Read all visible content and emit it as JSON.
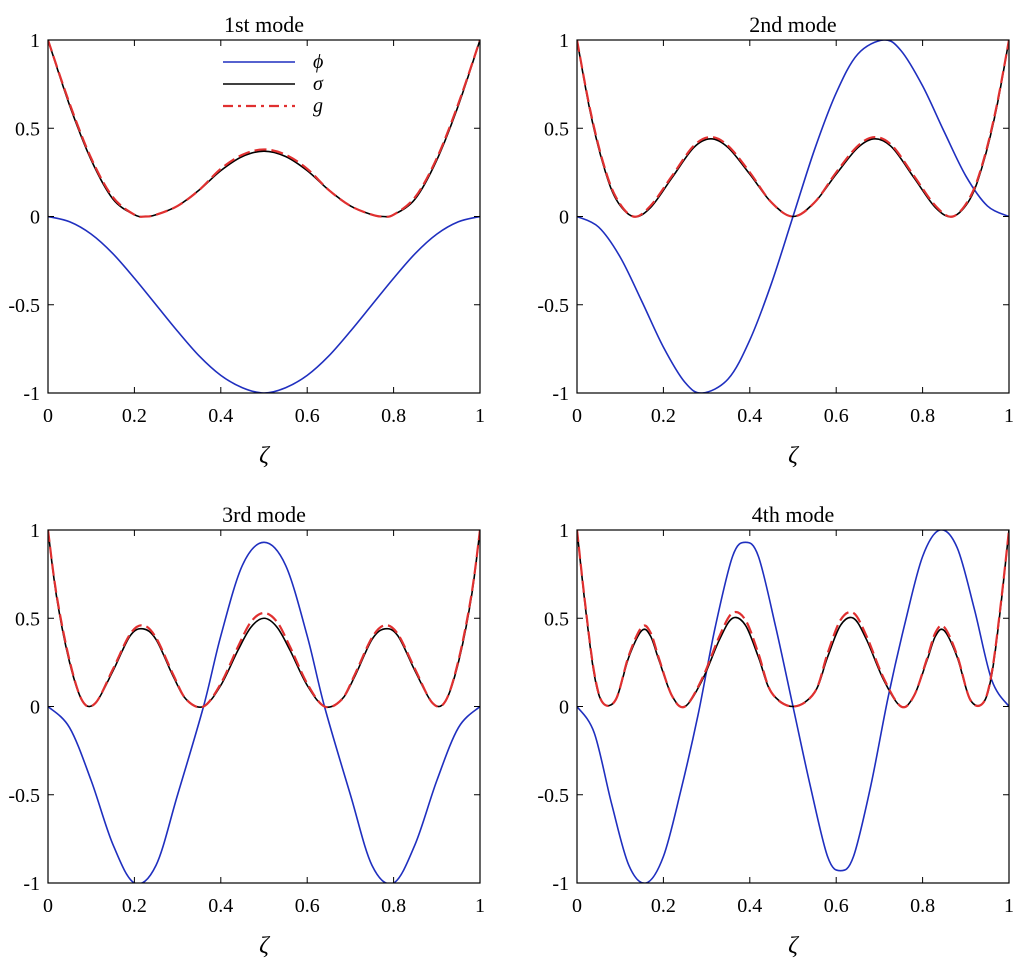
{
  "chart_data": [
    {
      "type": "line",
      "title": "1st mode",
      "xlabel": "ζ",
      "ylabel": "",
      "xlim": [
        0,
        1
      ],
      "ylim": [
        -1,
        1
      ],
      "xticks": [
        0,
        0.2,
        0.4,
        0.6,
        0.8,
        1
      ],
      "xtick_labels": [
        "0",
        "0.2",
        "0.4",
        "0.6",
        "0.8",
        "1"
      ],
      "yticks": [
        -1,
        -0.5,
        0,
        0.5,
        1
      ],
      "ytick_labels": [
        "-1",
        "-0.5",
        "0",
        "0.5",
        "1"
      ],
      "grid": false,
      "legend": {
        "placement": "top-center",
        "entries": [
          "ϕ",
          "σ",
          "g"
        ]
      },
      "series": [
        {
          "name": "ϕ",
          "color": "#1f2fbf",
          "style": "solid",
          "x": [
            0,
            0.05,
            0.1,
            0.15,
            0.2,
            0.25,
            0.3,
            0.35,
            0.4,
            0.45,
            0.5,
            0.55,
            0.6,
            0.65,
            0.7,
            0.75,
            0.8,
            0.85,
            0.9,
            0.95,
            1
          ],
          "y": [
            0,
            -0.03,
            -0.1,
            -0.21,
            -0.35,
            -0.5,
            -0.65,
            -0.79,
            -0.9,
            -0.97,
            -1,
            -0.97,
            -0.9,
            -0.79,
            -0.65,
            -0.5,
            -0.35,
            -0.21,
            -0.1,
            -0.03,
            0
          ]
        },
        {
          "name": "σ",
          "color": "#000000",
          "style": "solid",
          "x": [
            0,
            0.05,
            0.1,
            0.15,
            0.2,
            0.225,
            0.25,
            0.3,
            0.35,
            0.4,
            0.45,
            0.5,
            0.55,
            0.6,
            0.65,
            0.7,
            0.75,
            0.775,
            0.8,
            0.85,
            0.9,
            0.95,
            1
          ],
          "y": [
            1,
            0.63,
            0.32,
            0.1,
            0.01,
            0,
            0.01,
            0.06,
            0.15,
            0.26,
            0.34,
            0.37,
            0.34,
            0.26,
            0.15,
            0.06,
            0.01,
            0,
            0.01,
            0.1,
            0.32,
            0.63,
            1
          ]
        },
        {
          "name": "g",
          "color": "#e03030",
          "style": "dashed",
          "x": [
            0,
            0.05,
            0.1,
            0.15,
            0.2,
            0.225,
            0.25,
            0.3,
            0.35,
            0.4,
            0.45,
            0.5,
            0.55,
            0.6,
            0.65,
            0.7,
            0.75,
            0.775,
            0.8,
            0.85,
            0.9,
            0.95,
            1
          ],
          "y": [
            1,
            0.64,
            0.33,
            0.11,
            0.01,
            0,
            0.01,
            0.06,
            0.15,
            0.27,
            0.35,
            0.38,
            0.35,
            0.27,
            0.15,
            0.06,
            0.01,
            0,
            0.01,
            0.11,
            0.33,
            0.64,
            1
          ]
        }
      ]
    },
    {
      "type": "line",
      "title": "2nd mode",
      "xlabel": "ζ",
      "ylabel": "",
      "xlim": [
        0,
        1
      ],
      "ylim": [
        -1,
        1
      ],
      "xticks": [
        0,
        0.2,
        0.4,
        0.6,
        0.8,
        1
      ],
      "xtick_labels": [
        "0",
        "0.2",
        "0.4",
        "0.6",
        "0.8",
        "1"
      ],
      "yticks": [
        -1,
        -0.5,
        0,
        0.5,
        1
      ],
      "ytick_labels": [
        "-1",
        "-0.5",
        "0",
        "0.5",
        "1"
      ],
      "grid": false,
      "series": [
        {
          "name": "ϕ",
          "color": "#1f2fbf",
          "style": "solid",
          "x": [
            0,
            0.05,
            0.1,
            0.15,
            0.2,
            0.25,
            0.29,
            0.35,
            0.4,
            0.45,
            0.5,
            0.55,
            0.6,
            0.65,
            0.71,
            0.75,
            0.8,
            0.85,
            0.9,
            0.95,
            1
          ],
          "y": [
            0,
            -0.06,
            -0.23,
            -0.48,
            -0.74,
            -0.94,
            -1,
            -0.92,
            -0.7,
            -0.38,
            0,
            0.38,
            0.7,
            0.92,
            1,
            0.94,
            0.74,
            0.48,
            0.23,
            0.06,
            0
          ]
        },
        {
          "name": "σ",
          "color": "#000000",
          "style": "solid",
          "x": [
            0,
            0.03,
            0.06,
            0.09,
            0.13,
            0.17,
            0.22,
            0.27,
            0.31,
            0.35,
            0.4,
            0.45,
            0.5,
            0.55,
            0.6,
            0.65,
            0.69,
            0.73,
            0.78,
            0.83,
            0.87,
            0.91,
            0.94,
            0.97,
            1
          ],
          "y": [
            1,
            0.6,
            0.3,
            0.1,
            0,
            0.05,
            0.22,
            0.39,
            0.44,
            0.39,
            0.24,
            0.08,
            0,
            0.08,
            0.24,
            0.39,
            0.44,
            0.39,
            0.22,
            0.05,
            0,
            0.1,
            0.3,
            0.6,
            1
          ]
        },
        {
          "name": "g",
          "color": "#e03030",
          "style": "dashed",
          "x": [
            0,
            0.03,
            0.06,
            0.09,
            0.13,
            0.17,
            0.22,
            0.27,
            0.31,
            0.35,
            0.4,
            0.45,
            0.5,
            0.55,
            0.6,
            0.65,
            0.69,
            0.73,
            0.78,
            0.83,
            0.87,
            0.91,
            0.94,
            0.97,
            1
          ],
          "y": [
            1,
            0.61,
            0.31,
            0.11,
            0,
            0.06,
            0.23,
            0.4,
            0.45,
            0.4,
            0.25,
            0.08,
            0,
            0.08,
            0.25,
            0.4,
            0.45,
            0.4,
            0.23,
            0.06,
            0,
            0.11,
            0.31,
            0.61,
            1
          ]
        }
      ]
    },
    {
      "type": "line",
      "title": "3rd mode",
      "xlabel": "ζ",
      "ylabel": "",
      "xlim": [
        0,
        1
      ],
      "ylim": [
        -1,
        1
      ],
      "xticks": [
        0,
        0.2,
        0.4,
        0.6,
        0.8,
        1
      ],
      "xtick_labels": [
        "0",
        "0.2",
        "0.4",
        "0.6",
        "0.8",
        "1"
      ],
      "yticks": [
        -1,
        -0.5,
        0,
        0.5,
        1
      ],
      "ytick_labels": [
        "-1",
        "-0.5",
        "0",
        "0.5",
        "1"
      ],
      "grid": false,
      "series": [
        {
          "name": "ϕ",
          "color": "#1f2fbf",
          "style": "solid",
          "x": [
            0,
            0.05,
            0.1,
            0.15,
            0.2,
            0.25,
            0.3,
            0.36,
            0.4,
            0.45,
            0.5,
            0.55,
            0.6,
            0.64,
            0.7,
            0.75,
            0.8,
            0.85,
            0.9,
            0.95,
            1
          ],
          "y": [
            0,
            -0.12,
            -0.42,
            -0.78,
            -1,
            -0.9,
            -0.5,
            0,
            0.4,
            0.8,
            0.93,
            0.8,
            0.4,
            0,
            -0.5,
            -0.9,
            -1,
            -0.78,
            -0.42,
            -0.12,
            0
          ]
        },
        {
          "name": "σ",
          "color": "#000000",
          "style": "solid",
          "x": [
            0,
            0.02,
            0.05,
            0.08,
            0.11,
            0.15,
            0.19,
            0.22,
            0.25,
            0.29,
            0.32,
            0.36,
            0.4,
            0.44,
            0.47,
            0.5,
            0.53,
            0.56,
            0.6,
            0.64,
            0.68,
            0.71,
            0.75,
            0.78,
            0.81,
            0.85,
            0.89,
            0.92,
            0.95,
            0.98,
            1
          ],
          "y": [
            1,
            0.62,
            0.25,
            0.03,
            0.02,
            0.2,
            0.4,
            0.44,
            0.38,
            0.17,
            0.04,
            0,
            0.12,
            0.32,
            0.45,
            0.5,
            0.45,
            0.32,
            0.12,
            0,
            0.04,
            0.17,
            0.38,
            0.44,
            0.4,
            0.2,
            0.02,
            0.03,
            0.25,
            0.62,
            1
          ]
        },
        {
          "name": "g",
          "color": "#e03030",
          "style": "dashed",
          "x": [
            0,
            0.02,
            0.05,
            0.08,
            0.11,
            0.15,
            0.19,
            0.22,
            0.25,
            0.29,
            0.32,
            0.36,
            0.4,
            0.44,
            0.47,
            0.5,
            0.53,
            0.56,
            0.6,
            0.64,
            0.68,
            0.71,
            0.75,
            0.78,
            0.81,
            0.85,
            0.89,
            0.92,
            0.95,
            0.98,
            1
          ],
          "y": [
            1,
            0.63,
            0.26,
            0.03,
            0.02,
            0.21,
            0.41,
            0.46,
            0.39,
            0.18,
            0.04,
            0,
            0.13,
            0.34,
            0.48,
            0.53,
            0.48,
            0.34,
            0.13,
            0,
            0.04,
            0.18,
            0.39,
            0.46,
            0.41,
            0.21,
            0.02,
            0.03,
            0.26,
            0.63,
            1
          ]
        }
      ]
    },
    {
      "type": "line",
      "title": "4th mode",
      "xlabel": "ζ",
      "ylabel": "",
      "xlim": [
        0,
        1
      ],
      "ylim": [
        -1,
        1
      ],
      "xticks": [
        0,
        0.2,
        0.4,
        0.6,
        0.8,
        1
      ],
      "xtick_labels": [
        "0",
        "0.2",
        "0.4",
        "0.6",
        "0.8",
        "1"
      ],
      "yticks": [
        -1,
        -0.5,
        0,
        0.5,
        1
      ],
      "ytick_labels": [
        "-1",
        "-0.5",
        "0",
        "0.5",
        "1"
      ],
      "grid": false,
      "series": [
        {
          "name": "ϕ",
          "color": "#1f2fbf",
          "style": "solid",
          "x": [
            0,
            0.04,
            0.08,
            0.12,
            0.16,
            0.2,
            0.24,
            0.28,
            0.32,
            0.36,
            0.39,
            0.42,
            0.46,
            0.5,
            0.54,
            0.58,
            0.61,
            0.64,
            0.68,
            0.72,
            0.76,
            0.8,
            0.84,
            0.88,
            0.92,
            0.96,
            1
          ],
          "y": [
            0,
            -0.15,
            -0.55,
            -0.9,
            -1,
            -0.85,
            -0.48,
            -0.05,
            0.45,
            0.85,
            0.93,
            0.85,
            0.45,
            0,
            -0.45,
            -0.85,
            -0.93,
            -0.85,
            -0.45,
            0.05,
            0.48,
            0.85,
            1,
            0.9,
            0.55,
            0.15,
            0
          ]
        },
        {
          "name": "σ",
          "color": "#000000",
          "style": "solid",
          "x": [
            0,
            0.02,
            0.04,
            0.06,
            0.09,
            0.12,
            0.15,
            0.17,
            0.19,
            0.22,
            0.25,
            0.29,
            0.33,
            0.36,
            0.39,
            0.42,
            0.45,
            0.5,
            0.55,
            0.58,
            0.61,
            0.64,
            0.67,
            0.71,
            0.75,
            0.78,
            0.81,
            0.83,
            0.85,
            0.88,
            0.91,
            0.94,
            0.96,
            0.98,
            1
          ],
          "y": [
            1,
            0.55,
            0.18,
            0.02,
            0.04,
            0.28,
            0.43,
            0.4,
            0.26,
            0.06,
            0,
            0.15,
            0.38,
            0.5,
            0.46,
            0.28,
            0.08,
            0,
            0.08,
            0.28,
            0.46,
            0.5,
            0.38,
            0.15,
            0,
            0.06,
            0.26,
            0.4,
            0.43,
            0.28,
            0.04,
            0.02,
            0.18,
            0.55,
            1
          ]
        },
        {
          "name": "g",
          "color": "#e03030",
          "style": "dashed",
          "x": [
            0,
            0.02,
            0.04,
            0.06,
            0.09,
            0.12,
            0.15,
            0.17,
            0.19,
            0.22,
            0.25,
            0.29,
            0.33,
            0.36,
            0.39,
            0.42,
            0.45,
            0.5,
            0.55,
            0.58,
            0.61,
            0.64,
            0.67,
            0.71,
            0.75,
            0.78,
            0.81,
            0.83,
            0.85,
            0.88,
            0.91,
            0.94,
            0.96,
            0.98,
            1
          ],
          "y": [
            1,
            0.56,
            0.19,
            0.02,
            0.04,
            0.29,
            0.45,
            0.42,
            0.27,
            0.06,
            0,
            0.16,
            0.4,
            0.53,
            0.49,
            0.3,
            0.08,
            0,
            0.08,
            0.3,
            0.49,
            0.53,
            0.4,
            0.16,
            0,
            0.06,
            0.27,
            0.42,
            0.45,
            0.29,
            0.04,
            0.02,
            0.19,
            0.56,
            1
          ]
        }
      ]
    }
  ]
}
